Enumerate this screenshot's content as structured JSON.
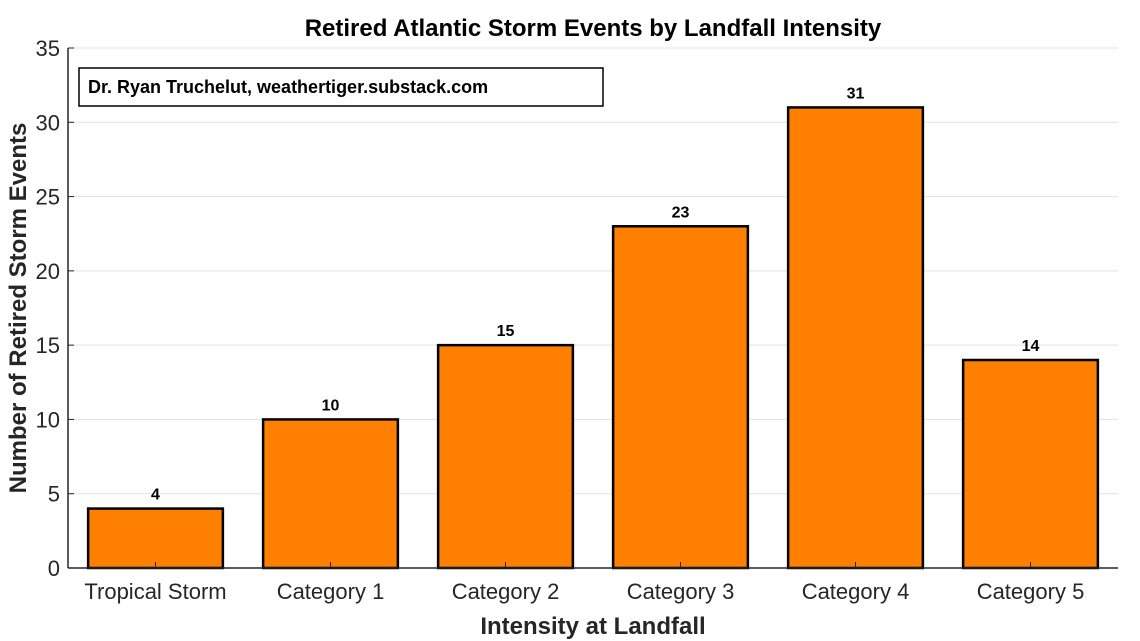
{
  "chart_data": {
    "type": "bar",
    "title": "Retired Atlantic Storm Events by Landfall Intensity",
    "xlabel": "Intensity at Landfall",
    "ylabel": "Number of Retired Storm Events",
    "categories": [
      "Tropical Storm",
      "Category 1",
      "Category 2",
      "Category 3",
      "Category 4",
      "Category 5"
    ],
    "values": [
      4,
      10,
      15,
      23,
      31,
      14
    ],
    "ylim": [
      0,
      35
    ],
    "yticks": [
      0,
      5,
      10,
      15,
      20,
      25,
      30,
      35
    ],
    "grid": true,
    "bar_color": "#FF8000",
    "bar_edge_color": "#000000",
    "annotation": "Dr. Ryan Truchelut, weathertiger.substack.com"
  }
}
